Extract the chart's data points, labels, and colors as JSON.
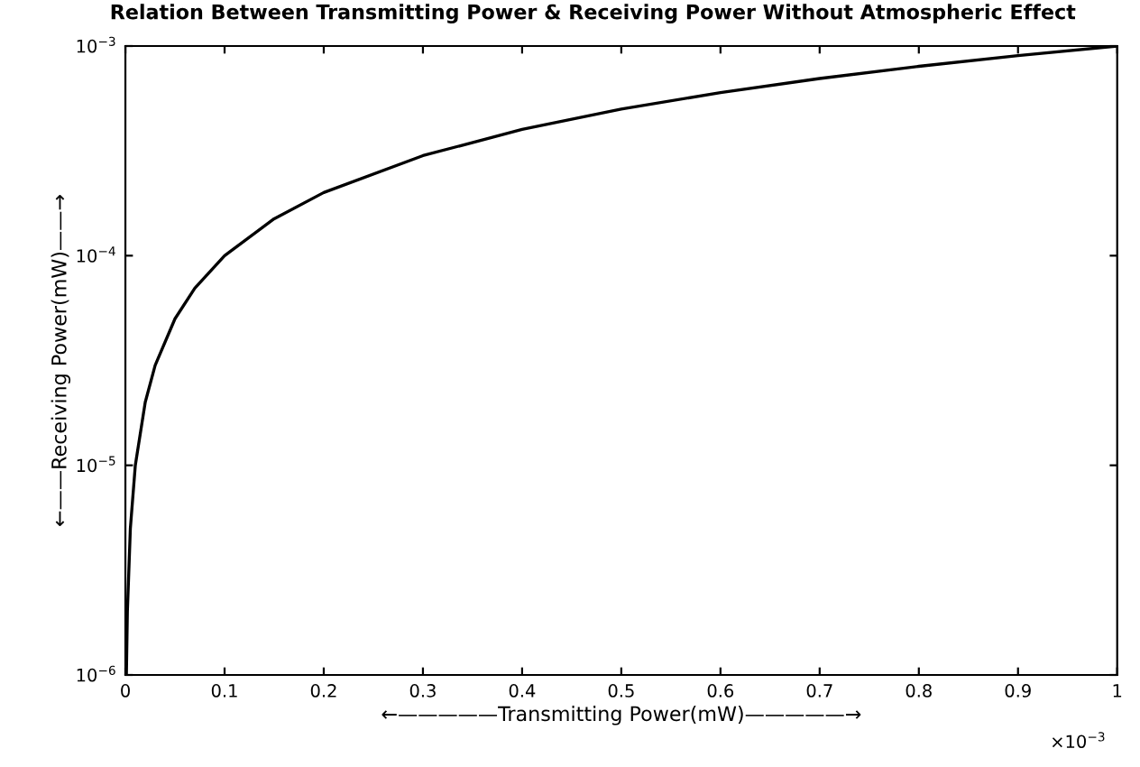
{
  "chart_data": {
    "type": "line",
    "title": "Relation Between Transmitting Power & Receiving Power Without Atmospheric Effect",
    "xlabel": "←—————Transmitting Power(mW)—————→",
    "ylabel": "←——Receiving Power(mW)——→",
    "x": [
      0.001,
      0.002,
      0.005,
      0.01,
      0.02,
      0.03,
      0.05,
      0.07,
      0.1,
      0.15,
      0.2,
      0.3,
      0.4,
      0.5,
      0.6,
      0.7,
      0.8,
      0.9,
      1
    ],
    "series": [
      {
        "color": "#000000",
        "values": [
          1e-06,
          2e-06,
          5e-06,
          1e-05,
          2e-05,
          3e-05,
          5e-05,
          7e-05,
          0.0001,
          0.00015,
          0.0002,
          0.0003,
          0.0004,
          0.0005,
          0.0006,
          0.0007,
          0.0008,
          0.0009,
          0.001
        ]
      }
    ],
    "log": "y",
    "xlim": [
      0,
      1
    ],
    "ylim": [
      1e-06,
      0.001
    ],
    "xticks": [
      0,
      0.1,
      0.2,
      0.3,
      0.4,
      0.5,
      0.6,
      0.7,
      0.8,
      0.9,
      1
    ],
    "yticks": [
      {
        "value": 1e-06,
        "label": "10$^{−6}$"
      },
      {
        "value": 1e-05,
        "label": "10$^{−5}$"
      },
      {
        "value": 0.0001,
        "label": "10$^{−4}$"
      },
      {
        "value": 0.001,
        "label": "10$^{−3}$"
      }
    ],
    "annotations": [
      "×10$^{−3}$"
    ],
    "grid": false,
    "marker": "none",
    "line_style": "solid"
  }
}
